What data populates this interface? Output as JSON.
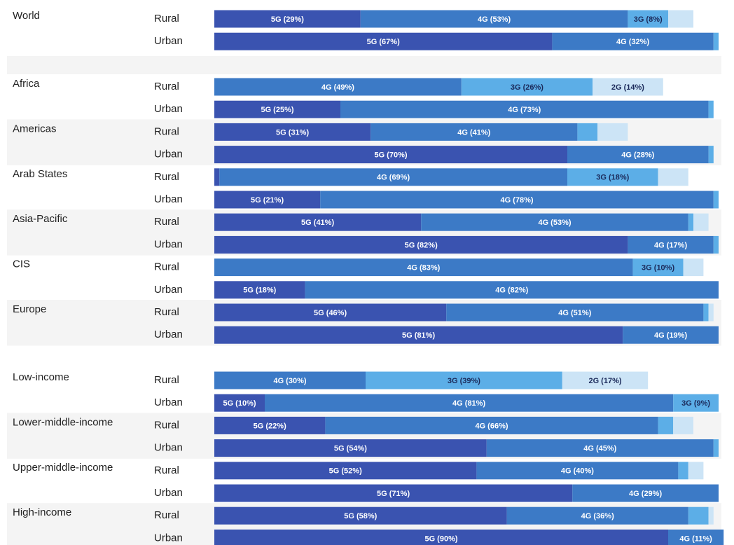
{
  "chart_data": [
    {
      "type": "stacked-bar",
      "row_groups": [
        "World",
        null
      ],
      "categories": [
        "Rural",
        "Urban"
      ],
      "series": [
        {
          "color": "#3a53b0",
          "label_color": "#ffffff",
          "values": [
            29,
            67
          ],
          "value_labels": [
            "5G (29%)",
            "5G (67%)"
          ]
        },
        {
          "color": "#3c7ac6",
          "label_color": "#ffffff",
          "values": [
            53,
            32
          ],
          "value_labels": [
            "4G (53%)",
            "4G (32%)"
          ]
        },
        {
          "color": "#5caee7",
          "label_color": "#1b2a5a",
          "values": [
            8,
            1
          ],
          "value_labels": [
            "3G (8%)",
            null
          ]
        },
        {
          "color": "#cce4f6",
          "label_color": "#1b2a5a",
          "values": [
            5,
            0
          ],
          "value_labels": [
            null,
            null
          ]
        }
      ]
    },
    {
      "type": "stacked-bar",
      "row_groups": [
        "Africa",
        null,
        "Americas",
        null,
        "Arab States",
        null,
        "Asia-Pacific",
        null,
        "CIS",
        null,
        "Europe",
        null
      ],
      "categories": [
        "Rural",
        "Urban",
        "Rural",
        "Urban",
        "Rural",
        "Urban",
        "Rural",
        "Urban",
        "Rural",
        "Urban",
        "Rural",
        "Urban"
      ],
      "series": [
        {
          "color": "#3a53b0",
          "label_color": "#ffffff",
          "values": [
            0,
            25,
            31,
            70,
            1,
            21,
            41,
            82,
            0,
            18,
            46,
            81
          ],
          "value_labels": [
            null,
            "5G (25%)",
            "5G (31%)",
            "5G (70%)",
            null,
            "5G (21%)",
            "5G (41%)",
            "5G (82%)",
            null,
            "5G (18%)",
            "5G (46%)",
            "5G (81%)"
          ]
        },
        {
          "color": "#3c7ac6",
          "label_color": "#ffffff",
          "values": [
            49,
            73,
            41,
            28,
            69,
            78,
            53,
            17,
            83,
            82,
            51,
            19
          ],
          "value_labels": [
            "4G (49%)",
            "4G (73%)",
            "4G (41%)",
            "4G (28%)",
            "4G (69%)",
            "4G (78%)",
            "4G (53%)",
            "4G (17%)",
            "4G (83%)",
            "4G (82%)",
            "4G (51%)",
            "4G (19%)"
          ]
        },
        {
          "color": "#5caee7",
          "label_color": "#1b2a5a",
          "values": [
            26,
            1,
            4,
            1,
            18,
            1,
            1,
            1,
            10,
            0,
            1,
            0
          ],
          "value_labels": [
            "3G (26%)",
            null,
            null,
            null,
            "3G (18%)",
            null,
            null,
            null,
            "3G (10%)",
            null,
            null,
            null
          ]
        },
        {
          "color": "#cce4f6",
          "label_color": "#1b2a5a",
          "values": [
            14,
            0,
            6,
            0,
            6,
            0,
            3,
            0,
            4,
            0,
            1,
            0
          ],
          "value_labels": [
            "2G (14%)",
            null,
            null,
            null,
            null,
            null,
            null,
            null,
            null,
            null,
            null,
            null
          ]
        }
      ]
    },
    {
      "type": "stacked-bar",
      "row_groups": [
        "Low-income",
        null,
        "Lower-middle-income",
        null,
        "Upper-middle-income",
        null,
        "High-income",
        null
      ],
      "categories": [
        "Rural",
        "Urban",
        "Rural",
        "Urban",
        "Rural",
        "Urban",
        "Rural",
        "Urban"
      ],
      "series": [
        {
          "color": "#3a53b0",
          "label_color": "#ffffff",
          "values": [
            0,
            10,
            22,
            54,
            52,
            71,
            58,
            90
          ],
          "value_labels": [
            null,
            "5G (10%)",
            "5G (22%)",
            "5G (54%)",
            "5G (52%)",
            "5G (71%)",
            "5G (58%)",
            "5G (90%)"
          ]
        },
        {
          "color": "#3c7ac6",
          "label_color": "#ffffff",
          "values": [
            30,
            81,
            66,
            45,
            40,
            29,
            36,
            11
          ],
          "value_labels": [
            "4G (30%)",
            "4G (81%)",
            "4G (66%)",
            "4G (45%)",
            "4G (40%)",
            "4G (29%)",
            "4G (36%)",
            "4G (11%)"
          ]
        },
        {
          "color": "#5caee7",
          "label_color": "#1b2a5a",
          "values": [
            39,
            9,
            3,
            1,
            2,
            0,
            4,
            0
          ],
          "value_labels": [
            "3G (39%)",
            "3G (9%)",
            null,
            null,
            null,
            null,
            null,
            null
          ]
        },
        {
          "color": "#cce4f6",
          "label_color": "#1b2a5a",
          "values": [
            17,
            0,
            4,
            0,
            3,
            0,
            1,
            0
          ],
          "value_labels": [
            "2G (17%)",
            null,
            null,
            null,
            null,
            null,
            null,
            null
          ]
        }
      ]
    }
  ]
}
